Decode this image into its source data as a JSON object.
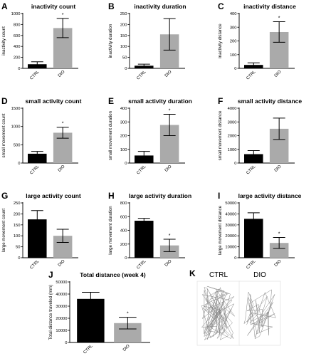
{
  "chart_data": [
    {
      "panel": "A",
      "type": "bar",
      "title": "inactivity count",
      "ylabel": "inactivity count",
      "ylim": [
        0,
        1000
      ],
      "yticks": [
        0,
        200,
        400,
        600,
        800,
        1000
      ],
      "categories": [
        "CTRL",
        "DIO"
      ],
      "values": [
        75,
        735
      ],
      "errors": [
        45,
        175
      ],
      "colors": [
        "#000000",
        "#aaaaaa"
      ],
      "significance": [
        "",
        "*"
      ]
    },
    {
      "panel": "B",
      "type": "bar",
      "title": "inactivity duration",
      "ylabel": "inactivity duration",
      "ylim": [
        0,
        250
      ],
      "yticks": [
        0,
        50,
        100,
        150,
        200,
        250
      ],
      "categories": [
        "CTRL",
        "DIO"
      ],
      "values": [
        12,
        155
      ],
      "errors": [
        7,
        72
      ],
      "colors": [
        "#000000",
        "#aaaaaa"
      ],
      "significance": [
        "",
        ""
      ]
    },
    {
      "panel": "C",
      "type": "bar",
      "title": "inactivity distance",
      "ylabel": "inactivity distance",
      "ylim": [
        0,
        400
      ],
      "yticks": [
        0,
        100,
        200,
        300,
        400
      ],
      "categories": [
        "CTRL",
        "DIO"
      ],
      "values": [
        25,
        265
      ],
      "errors": [
        15,
        75
      ],
      "colors": [
        "#000000",
        "#aaaaaa"
      ],
      "significance": [
        "",
        "*"
      ]
    },
    {
      "panel": "D",
      "type": "bar",
      "title": "small activity count",
      "ylabel": "small movement count",
      "ylim": [
        0,
        1500
      ],
      "yticks": [
        0,
        500,
        1000,
        1500
      ],
      "categories": [
        "CTRL",
        "DIO"
      ],
      "values": [
        255,
        830
      ],
      "errors": [
        65,
        150
      ],
      "colors": [
        "#000000",
        "#aaaaaa"
      ],
      "significance": [
        "",
        "*"
      ]
    },
    {
      "panel": "E",
      "type": "bar",
      "title": "small activity duration",
      "ylabel": "small movement duration",
      "ylim": [
        0,
        400
      ],
      "yticks": [
        0,
        100,
        200,
        300,
        400
      ],
      "categories": [
        "CTRL",
        "DIO"
      ],
      "values": [
        55,
        278
      ],
      "errors": [
        30,
        78
      ],
      "colors": [
        "#000000",
        "#aaaaaa"
      ],
      "significance": [
        "",
        "*"
      ]
    },
    {
      "panel": "F",
      "type": "bar",
      "title": "small activity distance",
      "ylabel": "small movement distance",
      "ylim": [
        0,
        4000
      ],
      "yticks": [
        0,
        1000,
        2000,
        3000,
        4000
      ],
      "categories": [
        "CTRL",
        "DIO"
      ],
      "values": [
        650,
        2500
      ],
      "errors": [
        260,
        780
      ],
      "colors": [
        "#000000",
        "#aaaaaa"
      ],
      "significance": [
        "",
        ""
      ]
    },
    {
      "panel": "G",
      "type": "bar",
      "title": "large activity count",
      "ylabel": "large movement count",
      "ylim": [
        0,
        250
      ],
      "yticks": [
        0,
        50,
        100,
        150,
        200,
        250
      ],
      "categories": [
        "CTRL",
        "DIO"
      ],
      "values": [
        175,
        100
      ],
      "errors": [
        40,
        30
      ],
      "colors": [
        "#000000",
        "#aaaaaa"
      ],
      "significance": [
        "",
        ""
      ]
    },
    {
      "panel": "H",
      "type": "bar",
      "title": "large activity duration",
      "ylabel": "large movement duration",
      "ylim": [
        0,
        800
      ],
      "yticks": [
        0,
        200,
        400,
        600,
        800
      ],
      "categories": [
        "CTRL",
        "DIO"
      ],
      "values": [
        540,
        180
      ],
      "errors": [
        35,
        90
      ],
      "colors": [
        "#000000",
        "#aaaaaa"
      ],
      "significance": [
        "",
        "*"
      ]
    },
    {
      "panel": "I",
      "type": "bar",
      "title": "large activity distance",
      "ylabel": "large movement distance",
      "ylim": [
        0,
        50000
      ],
      "yticks": [
        0,
        10000,
        20000,
        30000,
        40000,
        50000
      ],
      "categories": [
        "CTRL",
        "DIO"
      ],
      "values": [
        35500,
        13500
      ],
      "errors": [
        5500,
        5000
      ],
      "colors": [
        "#000000",
        "#aaaaaa"
      ],
      "significance": [
        "",
        "*"
      ]
    },
    {
      "panel": "J",
      "type": "bar",
      "title": "Total distance (week 4)",
      "ylabel": "Total distance traveled (mm)",
      "ylim": [
        0,
        50000
      ],
      "yticks": [
        0,
        10000,
        20000,
        30000,
        40000,
        50000
      ],
      "categories": [
        "CTRL",
        "DIO"
      ],
      "values": [
        36000,
        16000
      ],
      "errors": [
        5500,
        4800
      ],
      "colors": [
        "#000000",
        "#aaaaaa"
      ],
      "significance": [
        "",
        "*"
      ]
    }
  ],
  "tracks": {
    "letter": "K",
    "labels": [
      "CTRL",
      "DIO"
    ],
    "line_color": "#888888",
    "frame_color": "#dddddd"
  }
}
